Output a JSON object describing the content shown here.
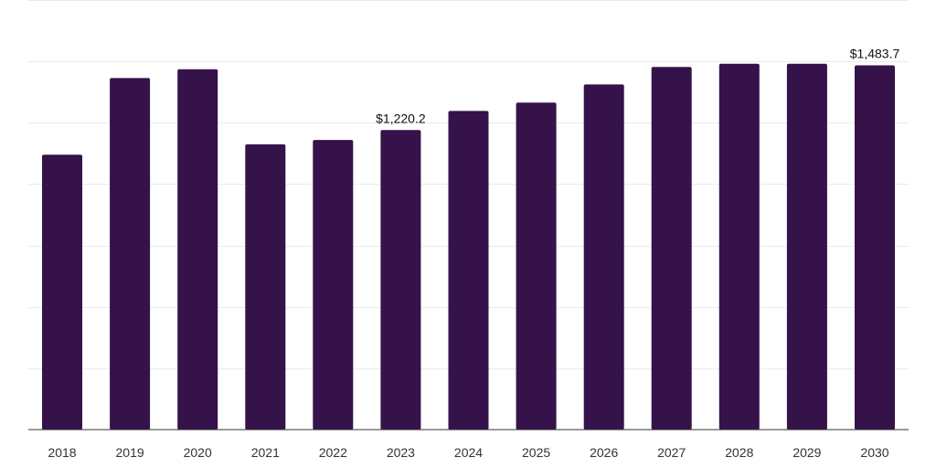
{
  "chart_data": {
    "type": "bar",
    "categories": [
      "2018",
      "2019",
      "2020",
      "2021",
      "2022",
      "2023",
      "2024",
      "2025",
      "2026",
      "2027",
      "2028",
      "2029",
      "2030"
    ],
    "values": [
      1120.0,
      1432.0,
      1468.0,
      1162.0,
      1180.0,
      1220.2,
      1298.0,
      1332.0,
      1406.0,
      1477.0,
      1490.0,
      1490.0,
      1483.7
    ],
    "data_labels": [
      {
        "index": 5,
        "text": "$1,220.2"
      },
      {
        "index": 12,
        "text": "$1,483.7"
      }
    ],
    "ylim": [
      0,
      1750
    ],
    "gridline_step": 250,
    "grid": true,
    "bar_color": "#35124a",
    "title": "",
    "xlabel": "",
    "ylabel": ""
  }
}
